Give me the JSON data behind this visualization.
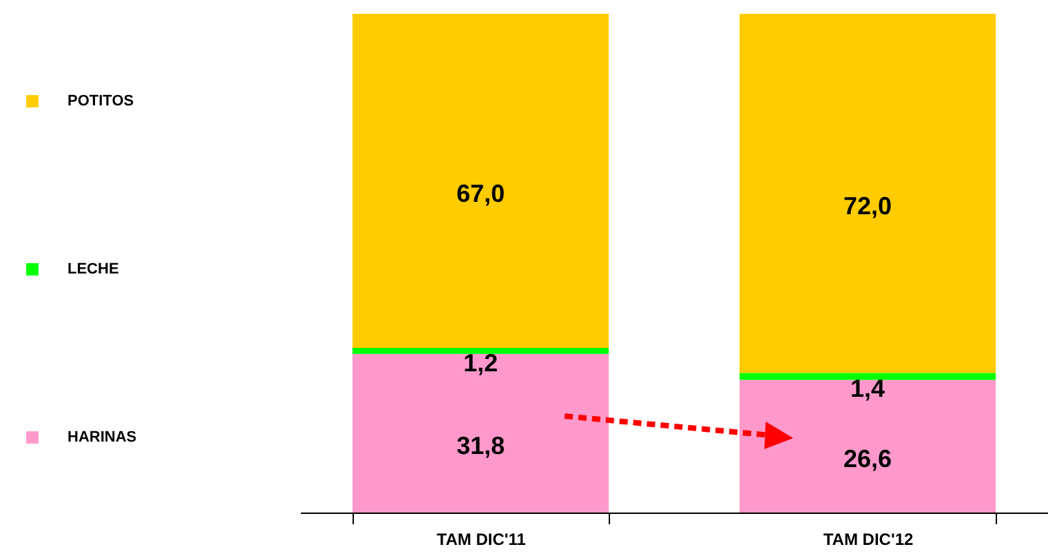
{
  "chart_data": {
    "type": "bar",
    "stacked": true,
    "categories": [
      "TAM DIC'11",
      "TAM DIC'12"
    ],
    "series": [
      {
        "name": "HARINAS",
        "color": "#ff99cc",
        "values": [
          31.8,
          26.6
        ],
        "value_labels": [
          "31,8",
          "26,6"
        ]
      },
      {
        "name": "LECHE",
        "color": "#00ff00",
        "values": [
          1.2,
          1.4
        ],
        "value_labels": [
          "1,2",
          "1,4"
        ]
      },
      {
        "name": "POTITOS",
        "color": "#ffcc00",
        "values": [
          67.0,
          72.0
        ],
        "value_labels": [
          "67,0",
          "72,0"
        ]
      }
    ],
    "legend": "left"
  }
}
